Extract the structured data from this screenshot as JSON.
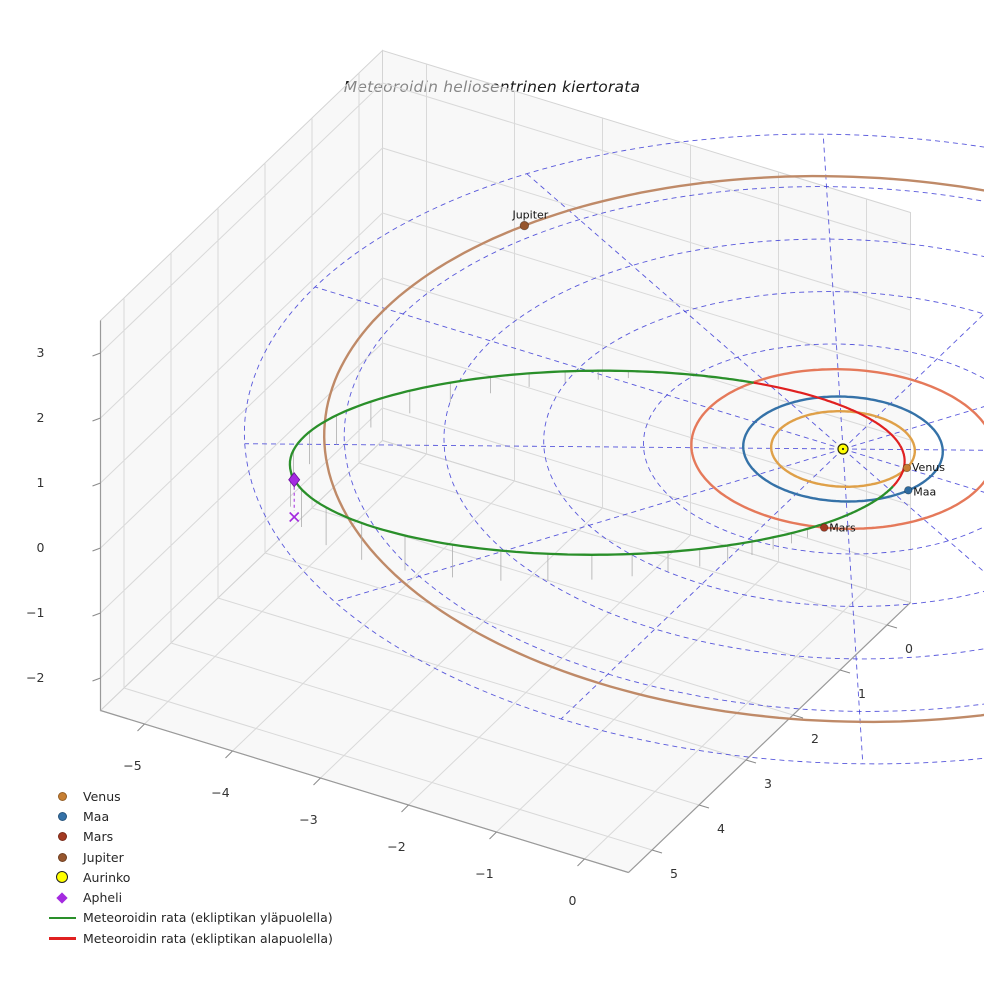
{
  "title": "Meteoroidin heliosentrinen kiertorata",
  "legend": {
    "items": [
      {
        "label": "Venus",
        "marker": "dot",
        "color": "#c77f33"
      },
      {
        "label": "Maa",
        "marker": "dot",
        "color": "#3572a8"
      },
      {
        "label": "Mars",
        "marker": "dot",
        "color": "#a33a22"
      },
      {
        "label": "Jupiter",
        "marker": "dot",
        "color": "#96562e"
      },
      {
        "label": "Aurinko",
        "marker": "circle",
        "color": "#ffff00",
        "edge": "#222222"
      },
      {
        "label": "Apheli",
        "marker": "diamond",
        "color": "#a42ae0"
      },
      {
        "label": "Meteoroidin rata (ekliptikan yläpuolella)",
        "marker": "line",
        "color": "#2a8f2a"
      },
      {
        "label": "Meteoroidin rata (ekliptikan alapuolella)",
        "marker": "line",
        "color": "#e02020"
      }
    ]
  },
  "chart_data": {
    "type": "scatter",
    "subtype": "3d-heliocentric-orbit-plot",
    "title": "Meteoroidin heliosentrinen kiertorata",
    "axes": {
      "x": {
        "ticks": [
          -5,
          -4,
          -3,
          -2,
          -1,
          0
        ],
        "range": [
          -5.5,
          0.5
        ]
      },
      "y": {
        "ticks": [
          0,
          1,
          2,
          3,
          4,
          5
        ],
        "range": [
          -0.5,
          5.5
        ]
      },
      "z": {
        "ticks": [
          -2,
          -1,
          0,
          1,
          2,
          3
        ],
        "range": [
          -2.5,
          3.5
        ]
      }
    },
    "ecliptic_grid": {
      "circle_radii_au": [
        1,
        2,
        3,
        4,
        5,
        6
      ],
      "spoke_step_deg": 30,
      "color": "#3b3bd6"
    },
    "sun": {
      "label": "Aurinko",
      "position": [
        0,
        0,
        0
      ],
      "color": "#ffff00",
      "edge_color": "#2b2b00"
    },
    "planets": [
      {
        "name": "Venus",
        "orbit_radius_au": 0.72,
        "angle_deg": -1,
        "orbit_color": "#dfa048",
        "marker_color": "#c77f33"
      },
      {
        "name": "Maa",
        "orbit_radius_au": 1.0,
        "angle_deg": 21,
        "orbit_color": "#3572a8",
        "marker_color": "#2e6ba0"
      },
      {
        "name": "Mars",
        "orbit_radius_au": 1.52,
        "angle_deg": 69,
        "orbit_color": "#e5795a",
        "marker_color": "#a33a22"
      },
      {
        "name": "Jupiter",
        "orbit_radius_au": 5.2,
        "angle_deg": 204,
        "orbit_color": "#bf8a68",
        "marker_color": "#96562e"
      }
    ],
    "meteoroid": {
      "aphelion_au": 5.75,
      "perihelion_au": 0.6,
      "aphelion_direction": [
        -0.715,
        0.692,
        0.1
      ],
      "minor_axis_direction": [
        0.7,
        0.718,
        0.036
      ],
      "above_label": "Meteoroidin rata (ekliptikan yläpuolella)",
      "below_label": "Meteoroidin rata (ekliptikan alapuolella)",
      "above_color": "#2a8f2a",
      "below_color": "#e02020",
      "stem_color": "#adadad",
      "aphelion_marker": {
        "label": "Apheli",
        "color": "#a42ae0"
      }
    }
  }
}
